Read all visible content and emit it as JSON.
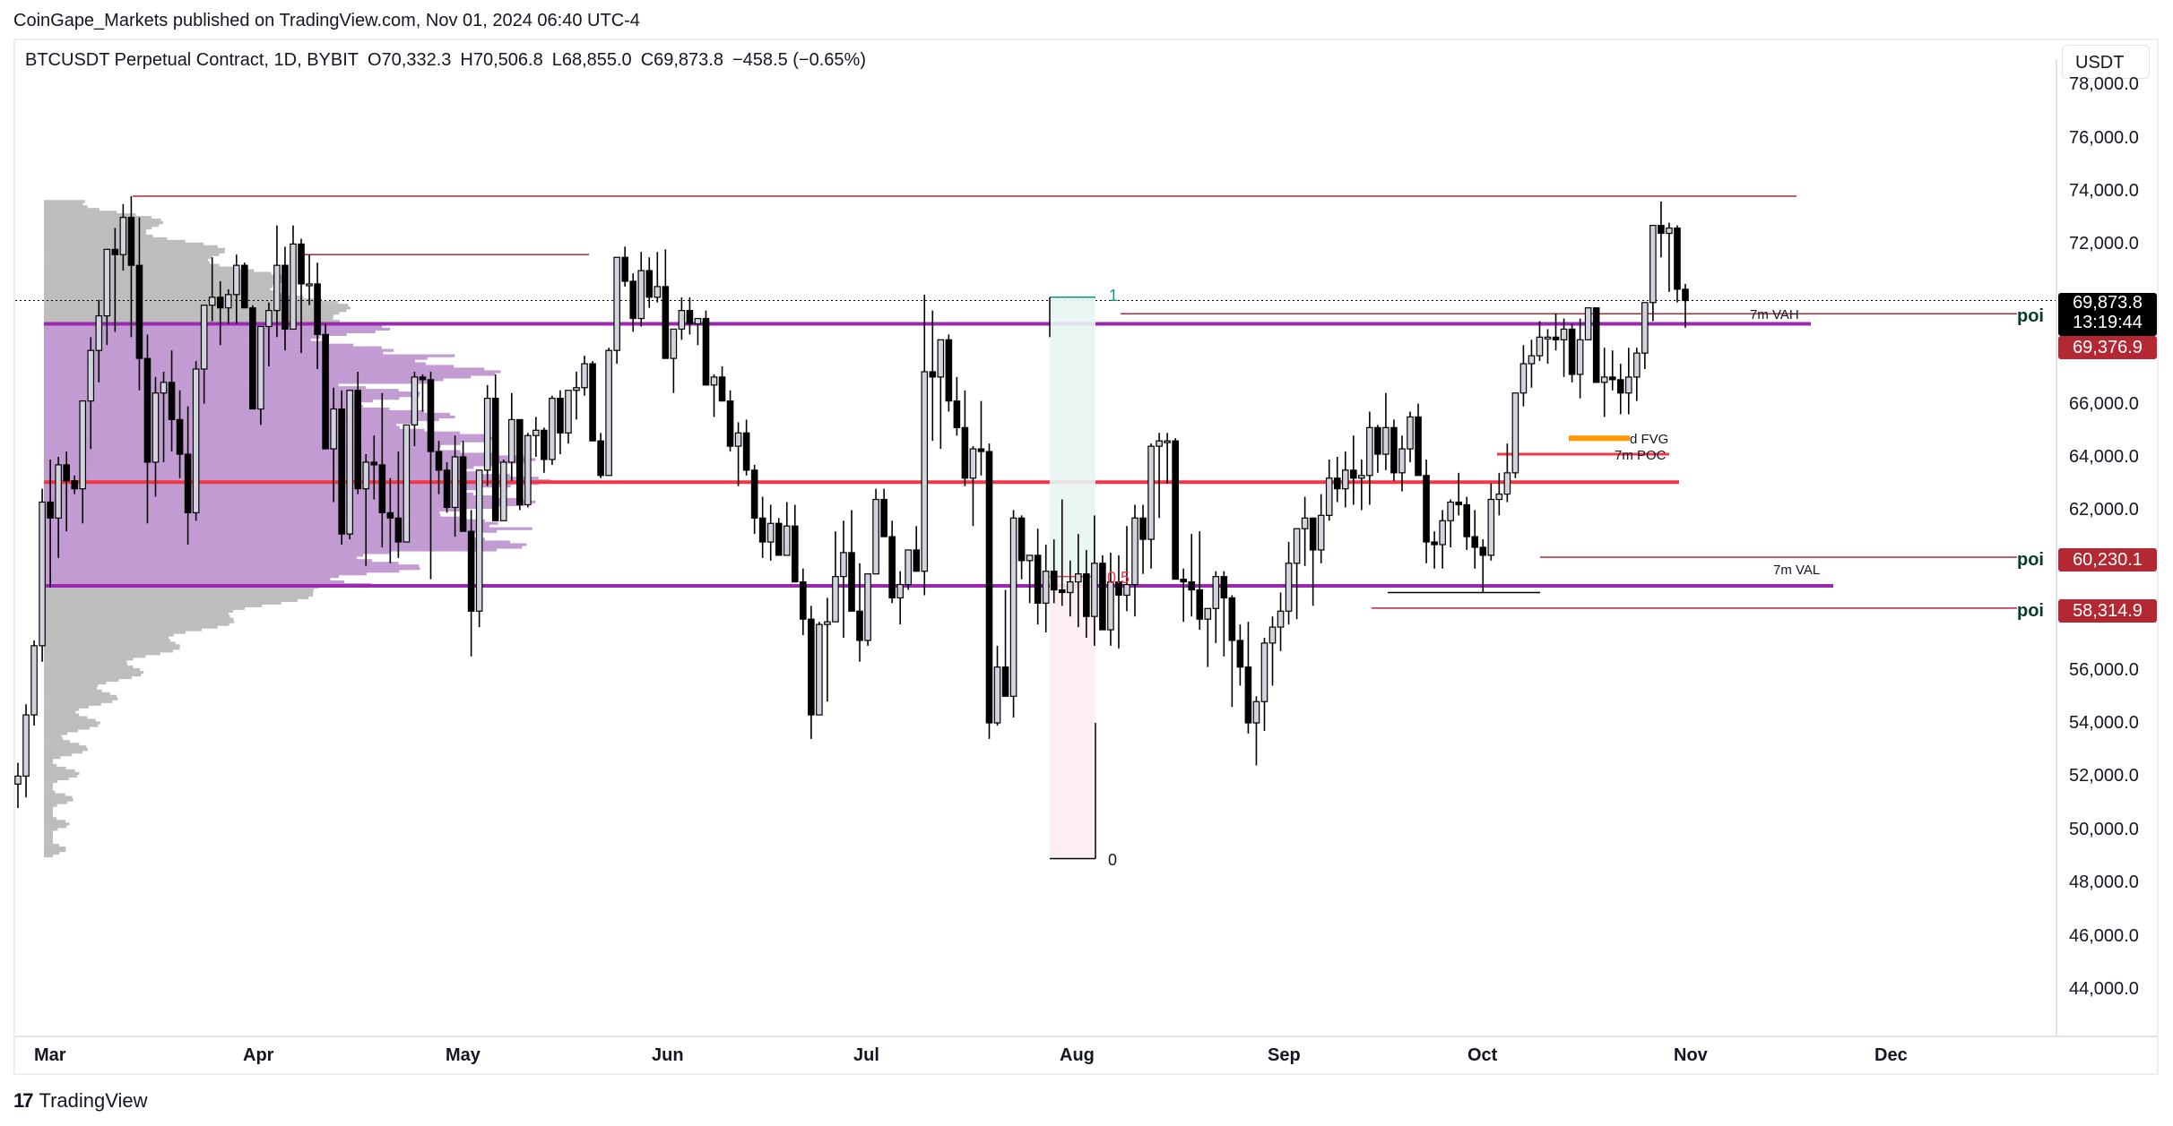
{
  "header": {
    "published": "CoinGape_Markets published on TradingView.com, Nov 01, 2024 06:40 UTC-4",
    "symbol": "BTCUSDT Perpetual Contract, 1D, BYBIT",
    "open": "O70,332.3",
    "high": "H70,506.8",
    "low": "L68,855.0",
    "close": "C69,873.8",
    "change": "−458.5 (−0.65%)"
  },
  "currency_button": "USDT",
  "footer": {
    "brand": "TradingView",
    "logo_mark": "17"
  },
  "price_labels": {
    "last_price": "69,873.8",
    "countdown": "13:19:44",
    "poi_1": "69,376.9",
    "poi_2": "60,230.1",
    "poi_3": "58,314.9"
  },
  "poi_label": "poi",
  "annotations": {
    "vah": "7m VAH",
    "val": "7m VAL",
    "poc": "7m POC",
    "fvg": "d FVG",
    "fib_1": "1",
    "fib_05": "0.5",
    "fib_0": "0"
  },
  "colors": {
    "bull_body": "#d1d4dc",
    "bear_body": "#000000",
    "value_area": "#c39bd3",
    "profile_gray": "#bdbdbd",
    "purple_line": "#9c27b0",
    "poc_red": "#f23645",
    "dark_red_line": "#b22833",
    "fvg_orange": "#ff9800",
    "fib_teal": "#089981",
    "fib_pink": "#f23645",
    "price_label_red": "#b22833"
  },
  "chart_data": {
    "type": "candlestick",
    "title": "BTCUSDT Perpetual Contract, 1D, BYBIT",
    "xlabel": "",
    "ylabel": "USDT",
    "ylim": [
      42500,
      78500
    ],
    "yticks": [
      "78,000.0",
      "76,000.0",
      "74,000.0",
      "72,000.0",
      "66,000.0",
      "64,000.0",
      "62,000.0",
      "56,000.0",
      "54,000.0",
      "52,000.0",
      "50,000.0",
      "48,000.0",
      "46,000.0",
      "44,000.0"
    ],
    "x_ticks": [
      "Mar",
      "Apr",
      "May",
      "Jun",
      "Jul",
      "Aug",
      "Sep",
      "Oct",
      "Nov",
      "Dec"
    ],
    "last": {
      "open": 70332.3,
      "high": 70506.8,
      "low": 68855.0,
      "close": 69873.8,
      "change": -458.5,
      "change_pct": -0.65
    },
    "levels": [
      {
        "name": "March high line",
        "price": 73800
      },
      {
        "name": "April high line",
        "price": 71600
      },
      {
        "name": "7m VAH",
        "price": 69000
      },
      {
        "name": "poi",
        "price": 69376.9
      },
      {
        "name": "7m POC (profile)",
        "price": 63050
      },
      {
        "name": "7m POC",
        "price": 64100
      },
      {
        "name": "d FVG",
        "price": 64700
      },
      {
        "name": "poi",
        "price": 60230.1
      },
      {
        "name": "7m VAL",
        "price": 59150
      },
      {
        "name": "poi",
        "price": 58314.9
      }
    ],
    "fib": {
      "level_1": 70000,
      "level_05": 59400,
      "level_0": 48900
    },
    "candles_ohlc_approx": [
      [
        51700,
        52500,
        50800,
        52000
      ],
      [
        52000,
        54700,
        51200,
        54300
      ],
      [
        54300,
        57100,
        53900,
        56900
      ],
      [
        56900,
        62800,
        56300,
        62300
      ],
      [
        62300,
        63900,
        59100,
        61700
      ],
      [
        61700,
        64000,
        60200,
        63700
      ],
      [
        63700,
        64200,
        61200,
        63100
      ],
      [
        63100,
        63300,
        62600,
        62800
      ],
      [
        62800,
        66000,
        61500,
        66100
      ],
      [
        66100,
        68500,
        64300,
        68000
      ],
      [
        68000,
        69900,
        66800,
        69300
      ],
      [
        69300,
        71700,
        68200,
        71800
      ],
      [
        71800,
        72600,
        68700,
        71600
      ],
      [
        71600,
        73500,
        71000,
        73000
      ],
      [
        73000,
        73800,
        68500,
        71200
      ],
      [
        71200,
        73000,
        66500,
        67700
      ],
      [
        67700,
        68600,
        61500,
        63800
      ],
      [
        63800,
        67000,
        62500,
        66400
      ],
      [
        66400,
        67200,
        63800,
        66800
      ],
      [
        66800,
        68000,
        64200,
        65400
      ],
      [
        65400,
        66500,
        63200,
        64100
      ],
      [
        64100,
        65900,
        60700,
        61900
      ],
      [
        61900,
        67600,
        61600,
        67300
      ],
      [
        67300,
        68600,
        66000,
        69700
      ],
      [
        69700,
        71500,
        69100,
        70000
      ],
      [
        70000,
        70600,
        68200,
        69600
      ],
      [
        69600,
        70300,
        69000,
        70100
      ],
      [
        70100,
        71600,
        69000,
        71200
      ],
      [
        71200,
        71300,
        69600,
        69600
      ],
      [
        69600,
        69700,
        66000,
        65800
      ],
      [
        65800,
        68500,
        65200,
        68900
      ],
      [
        68900,
        69800,
        67400,
        69500
      ],
      [
        69500,
        72700,
        68500,
        71200
      ],
      [
        71200,
        71900,
        68000,
        68800
      ],
      [
        68800,
        72700,
        69400,
        72000
      ],
      [
        72000,
        72200,
        67900,
        70500
      ],
      [
        70500,
        71600,
        69700,
        70500
      ],
      [
        70500,
        71300,
        67300,
        68600
      ],
      [
        68600,
        69000,
        65100,
        64300
      ],
      [
        64300,
        66600,
        62300,
        65800
      ],
      [
        65800,
        66500,
        60700,
        61100
      ],
      [
        61100,
        66300,
        60900,
        66500
      ],
      [
        66500,
        67200,
        62600,
        62800
      ],
      [
        62800,
        64100,
        59900,
        63800
      ],
      [
        63800,
        64800,
        62400,
        63700
      ],
      [
        63700,
        66400,
        60600,
        61900
      ],
      [
        61900,
        63200,
        60000,
        61700
      ],
      [
        61700,
        64200,
        60200,
        60800
      ],
      [
        60800,
        64700,
        61000,
        65200
      ],
      [
        65200,
        67200,
        64400,
        67000
      ],
      [
        67000,
        67100,
        65700,
        66900
      ],
      [
        66900,
        67200,
        59400,
        64200
      ],
      [
        64200,
        64600,
        62600,
        63500
      ],
      [
        63500,
        63800,
        61900,
        62100
      ],
      [
        62100,
        64800,
        61000,
        64000
      ],
      [
        64000,
        64600,
        61700,
        61200
      ],
      [
        61200,
        62000,
        56500,
        58200
      ],
      [
        58200,
        63300,
        57600,
        63500
      ],
      [
        63500,
        66700,
        62900,
        66200
      ],
      [
        66200,
        67100,
        61800,
        61600
      ],
      [
        61600,
        63900,
        62400,
        63800
      ],
      [
        63800,
        66400,
        63100,
        65400
      ],
      [
        65400,
        65300,
        62000,
        62200
      ],
      [
        62200,
        64900,
        62100,
        64800
      ],
      [
        64800,
        65500,
        64000,
        65000
      ],
      [
        65000,
        65100,
        63400,
        63900
      ],
      [
        63900,
        66300,
        63700,
        66200
      ],
      [
        66200,
        66500,
        64100,
        64900
      ],
      [
        64900,
        66000,
        64500,
        66500
      ],
      [
        66500,
        67200,
        65400,
        66600
      ],
      [
        66600,
        67800,
        66300,
        67500
      ],
      [
        67500,
        67600,
        64700,
        64600
      ],
      [
        64600,
        64900,
        63200,
        63300
      ],
      [
        63300,
        68100,
        63800,
        68000
      ],
      [
        68000,
        71500,
        67500,
        71500
      ],
      [
        71500,
        71900,
        70400,
        70600
      ],
      [
        70600,
        70900,
        68700,
        69200
      ],
      [
        69200,
        71700,
        68900,
        71000
      ],
      [
        71000,
        71500,
        69600,
        70000
      ],
      [
        70000,
        71700,
        69800,
        70400
      ],
      [
        70400,
        71800,
        67700,
        67700
      ],
      [
        67700,
        68100,
        66400,
        68800
      ],
      [
        68800,
        70000,
        68400,
        69500
      ],
      [
        69500,
        70000,
        68600,
        69000
      ],
      [
        69000,
        69100,
        68200,
        69200
      ],
      [
        69200,
        69500,
        66900,
        66700
      ],
      [
        66700,
        67100,
        65500,
        67000
      ],
      [
        67000,
        67400,
        66100,
        66100
      ],
      [
        66100,
        66500,
        64200,
        64400
      ],
      [
        64400,
        65300,
        62900,
        64900
      ],
      [
        64900,
        65400,
        63300,
        63500
      ],
      [
        63500,
        63700,
        61100,
        61700
      ],
      [
        61700,
        62500,
        60200,
        60800
      ],
      [
        60800,
        62200,
        60100,
        61500
      ],
      [
        61500,
        61700,
        60700,
        60300
      ],
      [
        60300,
        62300,
        60600,
        61400
      ],
      [
        61400,
        62200,
        59500,
        59300
      ],
      [
        59300,
        59800,
        57300,
        57900
      ],
      [
        57900,
        58400,
        53400,
        54300
      ],
      [
        54300,
        57800,
        54800,
        57700
      ],
      [
        57700,
        58700,
        54800,
        57800
      ],
      [
        57800,
        61200,
        57800,
        59500
      ],
      [
        59500,
        61600,
        57200,
        60400
      ],
      [
        60400,
        62000,
        58400,
        58200
      ],
      [
        58200,
        60000,
        56300,
        57100
      ],
      [
        57100,
        59300,
        56900,
        59600
      ],
      [
        59600,
        62800,
        59700,
        62400
      ],
      [
        62400,
        62800,
        61900,
        61000
      ],
      [
        61000,
        61600,
        58500,
        58700
      ],
      [
        58700,
        59700,
        57700,
        59200
      ],
      [
        59200,
        60300,
        59000,
        60500
      ],
      [
        60500,
        61400,
        60000,
        59700
      ],
      [
        59700,
        70100,
        58800,
        67200
      ],
      [
        67200,
        69500,
        64600,
        67000
      ],
      [
        67000,
        68300,
        64300,
        68400
      ],
      [
        68400,
        68600,
        65700,
        66100
      ],
      [
        66100,
        67000,
        64800,
        65100
      ],
      [
        65100,
        66500,
        62900,
        63200
      ],
      [
        63200,
        64400,
        61400,
        64300
      ],
      [
        64300,
        66100,
        63300,
        64200
      ],
      [
        64200,
        64500,
        53400,
        54000
      ],
      [
        54000,
        56900,
        53900,
        56100
      ],
      [
        56100,
        59000,
        55000,
        55000
      ],
      [
        55000,
        62000,
        54200,
        61700
      ],
      [
        61700,
        61800,
        59400,
        60100
      ],
      [
        60100,
        60200,
        58500,
        60300
      ],
      [
        60300,
        61300,
        57700,
        58500
      ],
      [
        58500,
        60700,
        57400,
        59700
      ],
      [
        59700,
        60900,
        58500,
        59000
      ],
      [
        59000,
        62400,
        58400,
        58900
      ],
      [
        58900,
        60100,
        58000,
        59300
      ],
      [
        59300,
        61100,
        57600,
        59600
      ],
      [
        59600,
        60500,
        57200,
        58000
      ],
      [
        58000,
        61800,
        56900,
        60000
      ],
      [
        60000,
        60300,
        57600,
        57500
      ],
      [
        57500,
        60400,
        56900,
        59300
      ],
      [
        59300,
        60300,
        56800,
        58800
      ],
      [
        58800,
        61400,
        58200,
        59200
      ],
      [
        59200,
        62200,
        58000,
        61700
      ],
      [
        61700,
        62200,
        59600,
        60900
      ],
      [
        60900,
        64500,
        59800,
        64400
      ],
      [
        64400,
        64900,
        61700,
        64600
      ],
      [
        64600,
        64900,
        63000,
        64600
      ],
      [
        64600,
        64700,
        61000,
        59400
      ],
      [
        59400,
        59800,
        57800,
        59300
      ],
      [
        59300,
        61100,
        58000,
        59000
      ],
      [
        59000,
        61200,
        57500,
        57900
      ],
      [
        57900,
        58300,
        56100,
        58300
      ],
      [
        58300,
        59700,
        57000,
        59500
      ],
      [
        59500,
        59700,
        56500,
        58700
      ],
      [
        58700,
        58800,
        54600,
        57100
      ],
      [
        57100,
        57700,
        55400,
        56100
      ],
      [
        56100,
        57800,
        53600,
        54000
      ],
      [
        54000,
        55000,
        52400,
        54800
      ],
      [
        54800,
        57200,
        53700,
        57000
      ],
      [
        57000,
        58000,
        55400,
        57600
      ],
      [
        57600,
        58900,
        56700,
        58200
      ],
      [
        58200,
        60800,
        57700,
        60000
      ],
      [
        60000,
        61200,
        57900,
        61300
      ],
      [
        61300,
        62500,
        59900,
        61700
      ],
      [
        61700,
        61700,
        58400,
        60500
      ],
      [
        60500,
        62600,
        60000,
        61800
      ],
      [
        61800,
        63900,
        61600,
        63200
      ],
      [
        63200,
        64000,
        62300,
        62800
      ],
      [
        62800,
        64200,
        62100,
        63500
      ],
      [
        63500,
        64800,
        62200,
        63200
      ],
      [
        63200,
        63900,
        62000,
        63300
      ],
      [
        63300,
        65700,
        62200,
        65100
      ],
      [
        65100,
        65200,
        63400,
        64100
      ],
      [
        64100,
        66400,
        63500,
        65100
      ],
      [
        65100,
        65400,
        63100,
        63400
      ],
      [
        63400,
        64800,
        62700,
        64300
      ],
      [
        64300,
        65700,
        63800,
        65500
      ],
      [
        65500,
        66000,
        63800,
        63300
      ],
      [
        63300,
        63900,
        60000,
        60800
      ],
      [
        60800,
        61200,
        59800,
        60700
      ],
      [
        60700,
        62000,
        59800,
        61600
      ],
      [
        61600,
        62400,
        60600,
        62300
      ],
      [
        62300,
        63400,
        61800,
        62200
      ],
      [
        62200,
        62500,
        60500,
        61000
      ],
      [
        61000,
        62000,
        59800,
        60600
      ],
      [
        60600,
        60900,
        58900,
        60300
      ],
      [
        60300,
        63000,
        60100,
        62400
      ],
      [
        62400,
        63400,
        61800,
        62600
      ],
      [
        62600,
        64500,
        62300,
        63400
      ],
      [
        63400,
        64700,
        63200,
        66400
      ],
      [
        66400,
        68200,
        65900,
        67500
      ],
      [
        67500,
        68400,
        66600,
        67800
      ],
      [
        67800,
        69100,
        67600,
        68500
      ],
      [
        68500,
        68800,
        67500,
        68500
      ],
      [
        68500,
        69400,
        68000,
        68400
      ],
      [
        68400,
        69200,
        67000,
        68800
      ],
      [
        68800,
        69000,
        66800,
        67100
      ],
      [
        67100,
        69200,
        66200,
        68400
      ],
      [
        68400,
        69600,
        68500,
        69600
      ],
      [
        69600,
        69600,
        67700,
        66800
      ],
      [
        66800,
        68100,
        65500,
        67000
      ],
      [
        67000,
        68000,
        66500,
        66900
      ],
      [
        66900,
        67500,
        65600,
        66400
      ],
      [
        66400,
        68100,
        65600,
        67000
      ],
      [
        67000,
        68100,
        66100,
        67900
      ],
      [
        67900,
        69100,
        67300,
        69800
      ],
      [
        69800,
        71200,
        69100,
        72700
      ],
      [
        72700,
        73600,
        71500,
        72400
      ],
      [
        72400,
        72800,
        70200,
        72600
      ],
      [
        72600,
        72700,
        69800,
        70300
      ],
      [
        70300,
        70500,
        68855,
        69874
      ]
    ]
  }
}
